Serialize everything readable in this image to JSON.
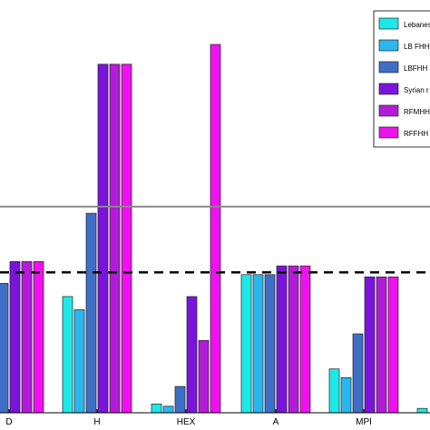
{
  "chart_data": {
    "type": "bar",
    "categories": [
      "D",
      "H",
      "HEX",
      "A",
      "MPI",
      ""
    ],
    "series": [
      {
        "name": "Lebanes",
        "color": "#1de8e8",
        "values": [
          null,
          0.53,
          0.04,
          0.63,
          0.2,
          0.02
        ]
      },
      {
        "name": "LB FHH",
        "color": "#2ab6ee",
        "values": [
          null,
          0.47,
          0.03,
          0.63,
          0.16,
          null
        ]
      },
      {
        "name": "LBFHH",
        "color": "#3f6ec6",
        "values": [
          0.59,
          0.91,
          0.12,
          0.63,
          0.36,
          null
        ]
      },
      {
        "name": "Syrian r",
        "color": "#7a14dc",
        "values": [
          0.69,
          1.59,
          0.53,
          0.67,
          0.62,
          null
        ]
      },
      {
        "name": "RFMHH",
        "color": "#b21cd8",
        "values": [
          0.69,
          1.59,
          0.33,
          0.67,
          0.62,
          null
        ]
      },
      {
        "name": "RFFHH",
        "color": "#ee12ee",
        "values": [
          0.69,
          1.59,
          1.68,
          0.67,
          0.62,
          null
        ]
      }
    ],
    "reference_lines": [
      {
        "value": 0.94,
        "style": "solid",
        "color": "#888888"
      },
      {
        "value": 0.64,
        "style": "dashed",
        "color": "#000000"
      }
    ],
    "ylim": [
      0,
      1.8
    ],
    "grid": false,
    "legend_position": "top-right",
    "xlabel": "",
    "ylabel": "",
    "title": ""
  }
}
